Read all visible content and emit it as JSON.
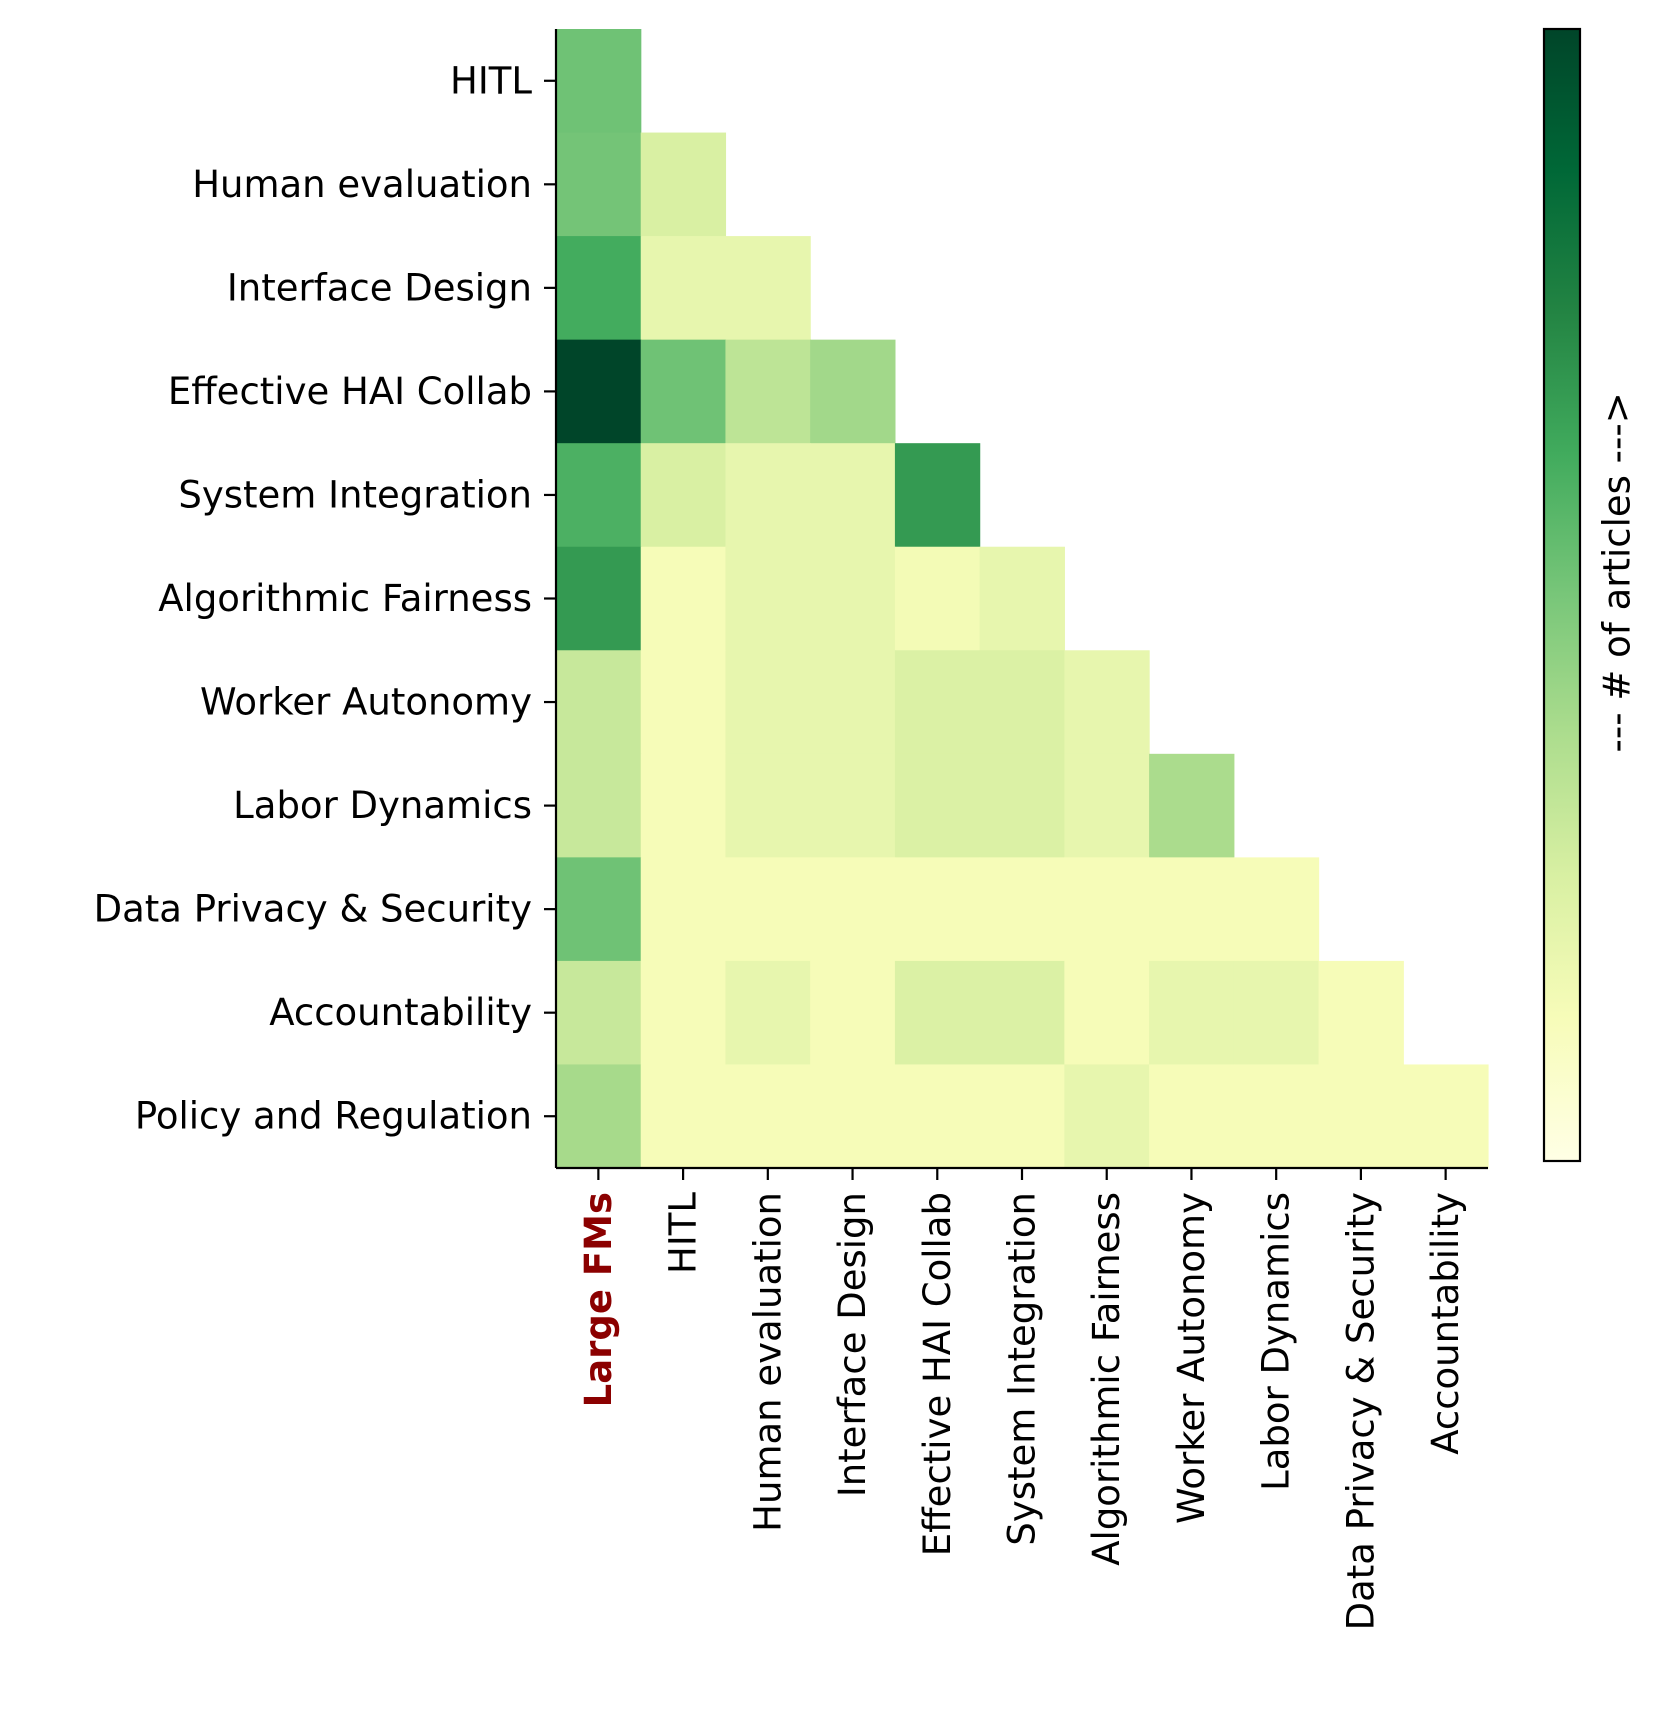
{
  "chart_data": {
    "type": "heatmap",
    "title": "",
    "xlabel": "",
    "ylabel": "",
    "row_labels": [
      "HITL",
      "Human evaluation",
      "Interface Design",
      "Effective HAI Collab",
      "System Integration",
      "Algorithmic Fairness",
      "Worker Autonomy",
      "Labor Dynamics",
      "Data Privacy & Security",
      "Accountability",
      "Policy and Regulation"
    ],
    "col_labels": [
      "Large FMs",
      "HITL",
      "Human evaluation",
      "Interface Design",
      "Effective HAI Collab",
      "System Integration",
      "Algorithmic Fairness",
      "Worker Autonomy",
      "Labor Dynamics",
      "Data Privacy & Security",
      "Accountability"
    ],
    "highlight_column": {
      "label": "Large FMs",
      "color": "#8b0000"
    },
    "values": [
      [
        0.52,
        null,
        null,
        null,
        null,
        null,
        null,
        null,
        null,
        null,
        null
      ],
      [
        0.51,
        0.25,
        null,
        null,
        null,
        null,
        null,
        null,
        null,
        null,
        null
      ],
      [
        0.62,
        0.19,
        0.19,
        null,
        null,
        null,
        null,
        null,
        null,
        null,
        null
      ],
      [
        1.0,
        0.52,
        0.33,
        0.4,
        null,
        null,
        null,
        null,
        null,
        null,
        null
      ],
      [
        0.6,
        0.25,
        0.19,
        0.19,
        0.68,
        null,
        null,
        null,
        null,
        null,
        null
      ],
      [
        0.68,
        0.13,
        0.19,
        0.19,
        0.14,
        0.19,
        null,
        null,
        null,
        null,
        null
      ],
      [
        0.3,
        0.13,
        0.19,
        0.19,
        0.24,
        0.24,
        0.19,
        null,
        null,
        null,
        null
      ],
      [
        0.3,
        0.13,
        0.19,
        0.19,
        0.24,
        0.24,
        0.19,
        0.38,
        null,
        null,
        null
      ],
      [
        0.52,
        0.13,
        0.13,
        0.13,
        0.13,
        0.13,
        0.13,
        0.13,
        0.13,
        null,
        null
      ],
      [
        0.3,
        0.13,
        0.19,
        0.13,
        0.24,
        0.24,
        0.13,
        0.19,
        0.19,
        0.13,
        null
      ],
      [
        0.39,
        0.13,
        0.13,
        0.13,
        0.13,
        0.13,
        0.19,
        0.13,
        0.13,
        0.13,
        0.13
      ]
    ],
    "value_units": "normalized 0-1 (relative # of articles)",
    "colorbar": {
      "label": "--- # of articles --->",
      "colormap": "Greens_r / YlGn",
      "range": [
        0,
        1
      ],
      "ticks": []
    },
    "colormap_stops": [
      "#ffffe5",
      "#f7fcb9",
      "#d9f0a3",
      "#addd8e",
      "#78c679",
      "#41ab5d",
      "#238443",
      "#006837",
      "#004529"
    ],
    "grid": false
  }
}
